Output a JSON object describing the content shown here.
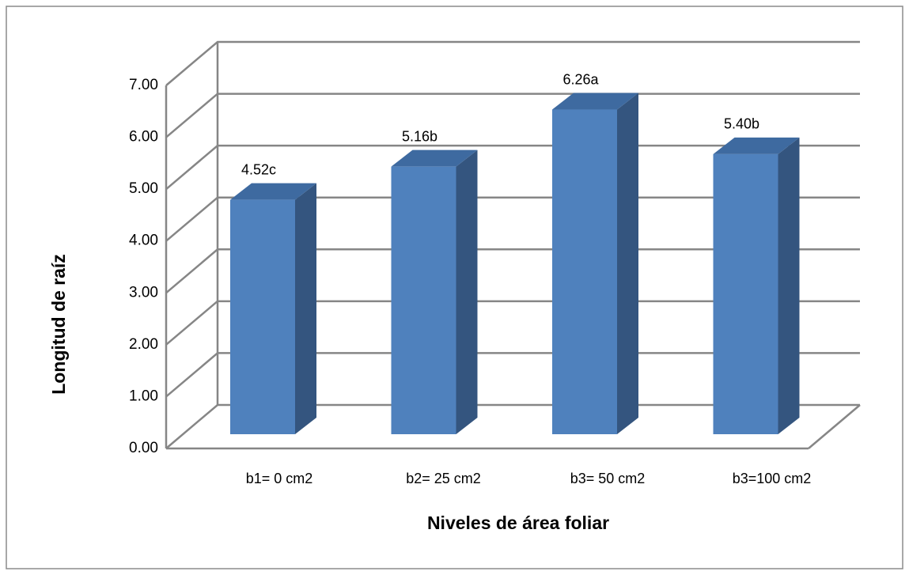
{
  "chart_data": {
    "type": "bar",
    "y_label": "Longitud de raíz",
    "x_label": "Niveles de área foliar",
    "categories": [
      "b1= 0 cm2",
      "b2= 25 cm2",
      "b3= 50 cm2",
      "b3=100 cm2"
    ],
    "values": [
      4.52,
      5.16,
      6.26,
      5.4
    ],
    "value_labels": [
      "4.52c",
      "5.16b",
      "6.26a",
      "5.40b"
    ],
    "color": "#4f81bd",
    "ylim": [
      0,
      7
    ],
    "yticks": [
      {
        "value": 0,
        "label": "0.00"
      },
      {
        "value": 1,
        "label": "1.00"
      },
      {
        "value": 2,
        "label": "2.00"
      },
      {
        "value": 3,
        "label": "3.00"
      },
      {
        "value": 4,
        "label": "4.00"
      },
      {
        "value": 5,
        "label": "5.00"
      },
      {
        "value": 6,
        "label": "6.00"
      },
      {
        "value": 7,
        "label": "7.00"
      }
    ],
    "grid": true
  }
}
